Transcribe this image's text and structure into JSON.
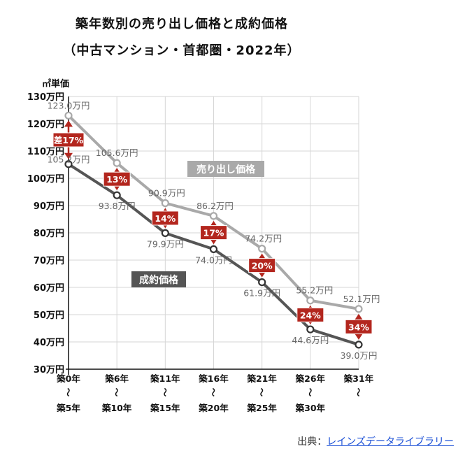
{
  "title_line1": "築年数別の売り出し価格と成約価格",
  "title_line2": "（中古マンション・首都圏・2022年）",
  "chart_data": {
    "type": "line",
    "ylabel": "㎡単価",
    "yticks": [
      "130万円",
      "120万円",
      "110万円",
      "100万円",
      "90万円",
      "80万円",
      "70万円",
      "60万円",
      "50万円",
      "40万円",
      "30万円"
    ],
    "ylim": [
      30,
      130
    ],
    "categories_top": [
      "築0年",
      "築6年",
      "築11年",
      "築16年",
      "築21年",
      "築26年",
      "築31年"
    ],
    "categories_bottom": [
      "築5年",
      "築10年",
      "築15年",
      "築20年",
      "築25年",
      "築30年",
      ""
    ],
    "wave": "～",
    "series": [
      {
        "name": "売り出し価格",
        "color": "#a9a9a9",
        "values": [
          123.0,
          105.6,
          90.9,
          86.2,
          74.2,
          55.2,
          52.1
        ],
        "labels": [
          "123.0万円",
          "105.6万円",
          "90.9万円",
          "86.2万円",
          "74.2万円",
          "55.2万円",
          "52.1万円"
        ]
      },
      {
        "name": "成約価格",
        "color": "#555555",
        "values": [
          105.2,
          93.8,
          79.9,
          74.0,
          61.9,
          44.6,
          39.0
        ],
        "labels": [
          "105.2万円",
          "93.8万円",
          "79.9万円",
          "74.0万円",
          "61.9万円",
          "44.6万円",
          "39.0万円"
        ]
      }
    ],
    "differences": [
      "差17%",
      "13%",
      "14%",
      "17%",
      "20%",
      "24%",
      "34%"
    ],
    "diff_color": "#b3261e",
    "grid": true
  },
  "source": {
    "prefix": "出典：",
    "link_text": "レインズデータライブラリー"
  }
}
